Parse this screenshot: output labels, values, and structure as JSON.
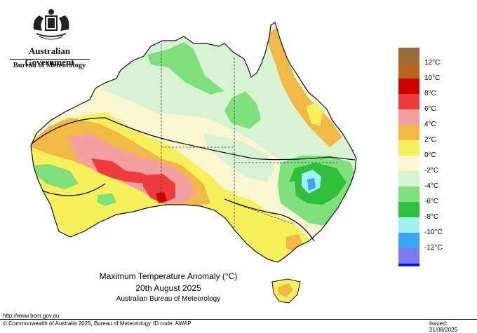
{
  "header": {
    "government": "Australian Government",
    "agency": "Bureau of Meteorology"
  },
  "map": {
    "title": "Maximum Temperature Anomaly (°C)",
    "date": "20th August 2025",
    "source": "Australian Bureau of Meteorology",
    "region": "Australia"
  },
  "legend": {
    "items": [
      {
        "label": "",
        "color": "#9b6a3a"
      },
      {
        "label": "12°C",
        "color": "#b5651d"
      },
      {
        "label": "10°C",
        "color": "#cc0000"
      },
      {
        "label": "8°C",
        "color": "#ef3b3b"
      },
      {
        "label": "6°C",
        "color": "#f4a0a0"
      },
      {
        "label": "4°C",
        "color": "#f2b845"
      },
      {
        "label": "2°C",
        "color": "#f6f05a"
      },
      {
        "label": "0°C",
        "color": "#fbf6d2"
      },
      {
        "label": "-2°C",
        "color": "#d8f3d4"
      },
      {
        "label": "-4°C",
        "color": "#7ee07a"
      },
      {
        "label": "-6°C",
        "color": "#2fbf3a"
      },
      {
        "label": "-8°C",
        "color": "#9ff0f0"
      },
      {
        "label": "-10°C",
        "color": "#3ba5f5"
      },
      {
        "label": "-12°C",
        "color": "#7a7aee"
      },
      {
        "label": "",
        "color": "#1010ee"
      }
    ]
  },
  "footer": {
    "url": "http://www.bom.gov.au",
    "copyright": "© Commonwealth of Australia 2025, Bureau of Meteorology",
    "id_code": "ID code: AWAP",
    "issued": "Issued: 21/08/2025"
  }
}
